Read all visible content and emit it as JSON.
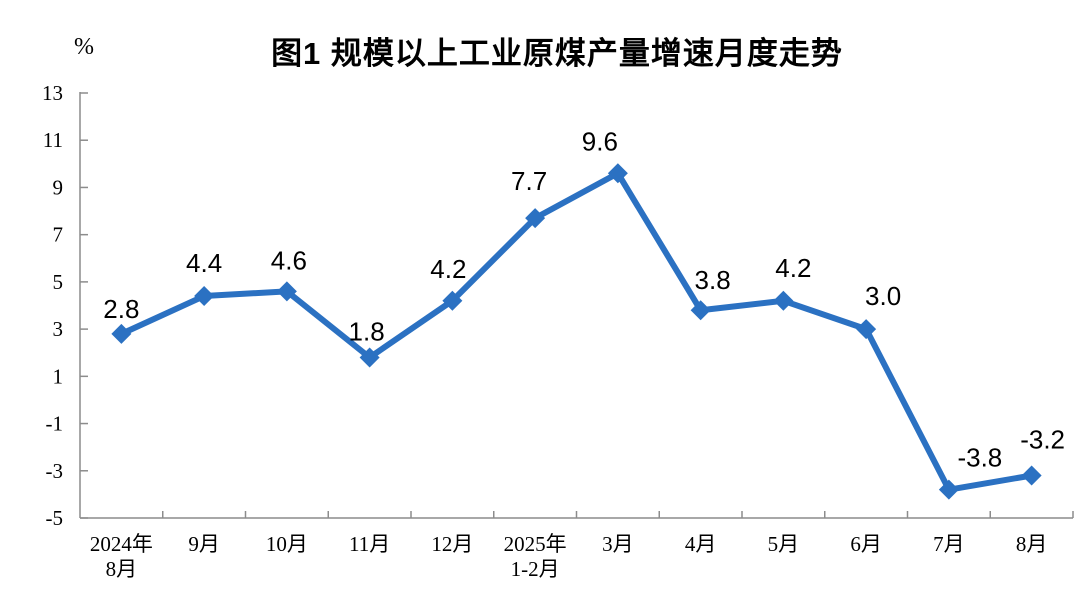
{
  "chart": {
    "title": "图1  规模以上工业原煤产量增速月度走势",
    "y_unit_label": "%"
  },
  "chart_data": {
    "type": "line",
    "title": "图1  规模以上工业原煤产量增速月度走势",
    "xlabel": "",
    "ylabel": "%",
    "categories": [
      [
        "2024年",
        "8月"
      ],
      [
        "9月"
      ],
      [
        "10月"
      ],
      [
        "11月"
      ],
      [
        "12月"
      ],
      [
        "2025年",
        "1-2月"
      ],
      [
        "3月"
      ],
      [
        "4月"
      ],
      [
        "5月"
      ],
      [
        "6月"
      ],
      [
        "7月"
      ],
      [
        "8月"
      ]
    ],
    "series": [
      {
        "name": "规模以上工业原煤产量增速",
        "values": [
          2.8,
          4.4,
          4.6,
          1.8,
          4.2,
          7.7,
          9.6,
          3.8,
          4.2,
          3.0,
          -3.8,
          -3.2
        ],
        "data_labels": [
          "2.8",
          "4.4",
          "4.6",
          "1.8",
          "4.2",
          "7.7",
          "9.6",
          "3.8",
          "4.2",
          "3.0",
          "-3.8",
          "-3.2"
        ]
      }
    ],
    "ylim": [
      -5,
      13
    ],
    "yticks": [
      13,
      11,
      9,
      7,
      5,
      3,
      1,
      -1,
      -3,
      -5
    ],
    "grid": false,
    "legend_position": "none",
    "marker": "diamond",
    "colors": {
      "line": "#2B71C2",
      "axis": "#8C8C8C",
      "text": "#000000",
      "background": "#FFFFFF"
    }
  }
}
